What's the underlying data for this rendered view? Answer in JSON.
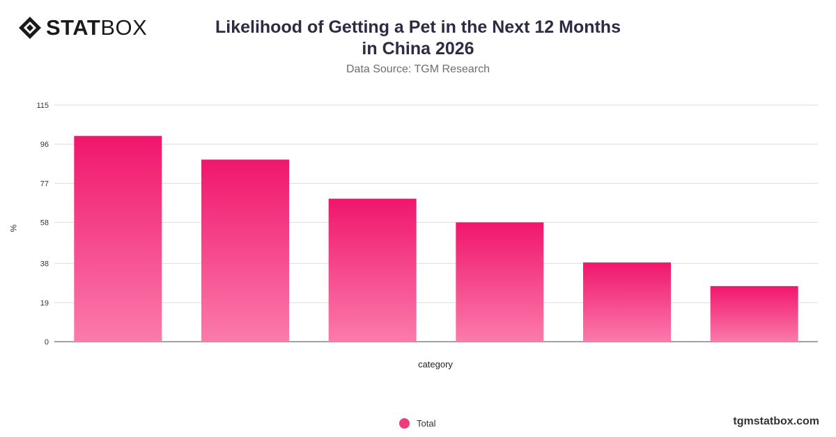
{
  "brand": {
    "logo_bold": "STAT",
    "logo_light": "BOX",
    "site": "tgmstatbox.com"
  },
  "header": {
    "title": "Likelihood of Getting a Pet in the Next 12 Months in China 2026",
    "subtitle": "Data Source: TGM Research"
  },
  "colors": {
    "bar_top": "#f0166c",
    "bar_bottom": "#fb7bab",
    "grid": "#dddddd",
    "axis": "#444444"
  },
  "chart_data": {
    "type": "bar",
    "title": "Likelihood of Getting a Pet in the Next 12 Months in China 2026",
    "subtitle": "Data Source: TGM Research",
    "xlabel": "category",
    "ylabel": "%",
    "categories": [
      "",
      "",
      "",
      "",
      "",
      ""
    ],
    "series": [
      {
        "name": "Total",
        "values": [
          100,
          88.5,
          69.5,
          58,
          38.5,
          27
        ]
      }
    ],
    "ylim": [
      0,
      115
    ],
    "yticks": [
      0,
      19,
      38,
      58,
      77,
      96,
      115
    ],
    "grid": true,
    "legend": "bottom-center"
  }
}
